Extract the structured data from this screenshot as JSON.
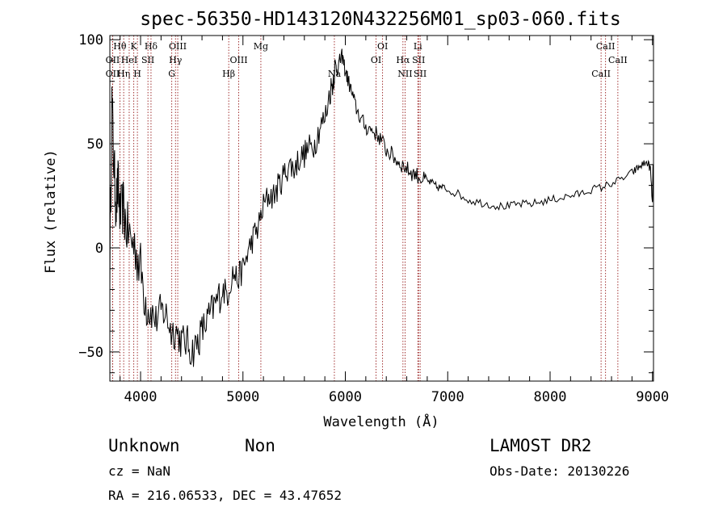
{
  "chart_data": {
    "type": "line",
    "title": "spec-56350-HD143120N432256M01_sp03-060.fits",
    "xlabel": "Wavelength (Å)",
    "ylabel": "Flux (relative)",
    "xlim": [
      3700,
      9010
    ],
    "ylim": [
      -64,
      102
    ],
    "xticks": [
      4000,
      5000,
      6000,
      7000,
      8000,
      9000
    ],
    "yticks": [
      -50,
      0,
      50,
      100
    ],
    "grid": false,
    "series": [
      {
        "x": [
          3700,
          3720,
          3740,
          3760,
          3780,
          3800,
          3830,
          3860,
          3900,
          3950,
          4000,
          4050,
          4100,
          4150,
          4200,
          4250,
          4300,
          4350,
          4400,
          4450,
          4500,
          4550,
          4600,
          4650,
          4700,
          4750,
          4800,
          4850,
          4900,
          4950,
          5000,
          5050,
          5100,
          5150,
          5200,
          5250,
          5300,
          5350,
          5400,
          5450,
          5500,
          5550,
          5600,
          5650,
          5700,
          5750,
          5800,
          5850,
          5880,
          5900,
          5920,
          5950,
          5970,
          6000,
          6030,
          6060,
          6100,
          6150,
          6200,
          6250,
          6300,
          6350,
          6400,
          6450,
          6500,
          6550,
          6600,
          6650,
          6700,
          6750,
          6800,
          6850,
          6900,
          6950,
          7000,
          7100,
          7200,
          7300,
          7400,
          7500,
          7600,
          7700,
          7800,
          7900,
          8000,
          8100,
          8200,
          8300,
          8400,
          8500,
          8600,
          8700,
          8800,
          8850,
          8900,
          8950,
          8980,
          9000,
          9005
        ],
        "y": [
          -10,
          70,
          40,
          20,
          30,
          15,
          20,
          10,
          5,
          0,
          -10,
          -25,
          -30,
          -35,
          -30,
          -32,
          -40,
          -40,
          -45,
          -45,
          -50,
          -46,
          -40,
          -35,
          -30,
          -25,
          -20,
          -22,
          -12,
          -15,
          -10,
          -2,
          5,
          10,
          20,
          25,
          25,
          30,
          35,
          40,
          38,
          43,
          45,
          48,
          50,
          58,
          62,
          75,
          80,
          88,
          86,
          90,
          92,
          85,
          80,
          75,
          68,
          62,
          58,
          57,
          55,
          52,
          47,
          45,
          42,
          40,
          38,
          36,
          35,
          33,
          32,
          31,
          29,
          29,
          28,
          26,
          23,
          22,
          21,
          20,
          20,
          21,
          21,
          22,
          23,
          24,
          25,
          26,
          28,
          29,
          31,
          33,
          36,
          38,
          40,
          41,
          38,
          20,
          40
        ]
      }
    ],
    "line_markers": [
      {
        "label": "Hθ",
        "x": 3798,
        "row": 0
      },
      {
        "label": "OII",
        "x": 3727,
        "row": 1
      },
      {
        "label": "OII",
        "x": 3727,
        "row": 2
      },
      {
        "label": "Hη",
        "x": 3835,
        "row": 2
      },
      {
        "label": "HeI",
        "x": 3889,
        "row": 1
      },
      {
        "label": "K",
        "x": 3934,
        "row": 0
      },
      {
        "label": "H",
        "x": 3969,
        "row": 2
      },
      {
        "label": "SII",
        "x": 4072,
        "row": 1
      },
      {
        "label": "Hδ",
        "x": 4102,
        "row": 0
      },
      {
        "label": "OIII",
        "x": 4363,
        "row": 0
      },
      {
        "label": "Hγ",
        "x": 4341,
        "row": 1
      },
      {
        "label": "G",
        "x": 4305,
        "row": 2
      },
      {
        "label": "OIII",
        "x": 4959,
        "row": 1
      },
      {
        "label": "Hβ",
        "x": 4861,
        "row": 2
      },
      {
        "label": "Mg",
        "x": 5175,
        "row": 0
      },
      {
        "label": "Na",
        "x": 5893,
        "row": 2
      },
      {
        "label": "OI",
        "x": 6364,
        "row": 0
      },
      {
        "label": "OI",
        "x": 6300,
        "row": 1
      },
      {
        "label": "Hα",
        "x": 6563,
        "row": 1
      },
      {
        "label": "NII",
        "x": 6583,
        "row": 2
      },
      {
        "label": "Li",
        "x": 6708,
        "row": 0
      },
      {
        "label": "SII",
        "x": 6716,
        "row": 1
      },
      {
        "label": "SII",
        "x": 6731,
        "row": 2
      },
      {
        "label": "CaII",
        "x": 8542,
        "row": 0
      },
      {
        "label": "CaII",
        "x": 8662,
        "row": 1
      },
      {
        "label": "CaII",
        "x": 8498,
        "row": 2
      }
    ],
    "marker_color": "#8b0000"
  },
  "footer": {
    "class_label": "Unknown",
    "subclass_label": "Non",
    "cz_text": "cz = NaN",
    "coords_text": "RA = 216.06533, DEC =  43.47652",
    "survey_label": "LAMOST DR2",
    "obs_date_text": "Obs-Date: 20130226"
  }
}
